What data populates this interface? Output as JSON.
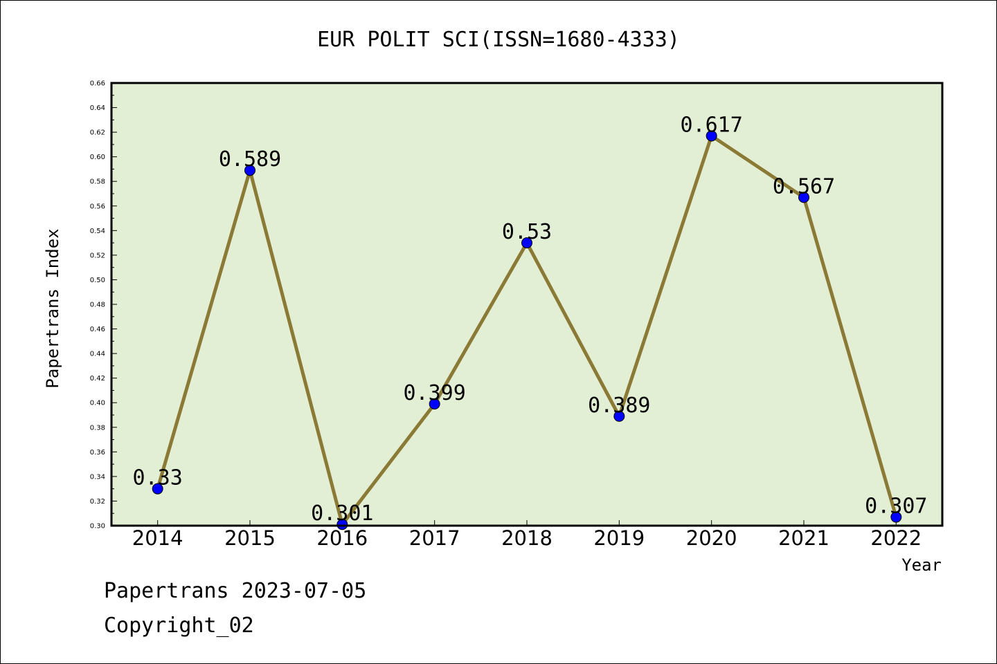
{
  "chart_data": {
    "type": "line",
    "title": "EUR POLIT SCI(ISSN=1680-4333)",
    "xlabel": "Year",
    "ylabel": "Papertrans Index",
    "categories": [
      "2014",
      "2015",
      "2016",
      "2017",
      "2018",
      "2019",
      "2020",
      "2021",
      "2022"
    ],
    "series": [
      {
        "values": [
          0.33,
          0.589,
          0.301,
          0.399,
          0.53,
          0.389,
          0.617,
          0.567,
          0.307
        ],
        "data_labels": [
          "0.33",
          "0.589",
          "0.301",
          "0.399",
          "0.53",
          "0.389",
          "0.617",
          "0.567",
          "0.307"
        ]
      }
    ],
    "ylim": [
      0.3,
      0.66
    ],
    "yticks": [
      "0.30",
      "0.32",
      "0.34",
      "0.36",
      "0.38",
      "0.40",
      "0.42",
      "0.44",
      "0.46",
      "0.48",
      "0.50",
      "0.52",
      "0.54",
      "0.56",
      "0.58",
      "0.60",
      "0.62",
      "0.64",
      "0.66"
    ],
    "grid": false,
    "colors": {
      "plot_background": "#e2efd5",
      "line": "#8b7a35",
      "marker": "#0000ff"
    }
  },
  "footer": {
    "line1": "Papertrans 2023-07-05",
    "line2": "Copyright_02"
  }
}
